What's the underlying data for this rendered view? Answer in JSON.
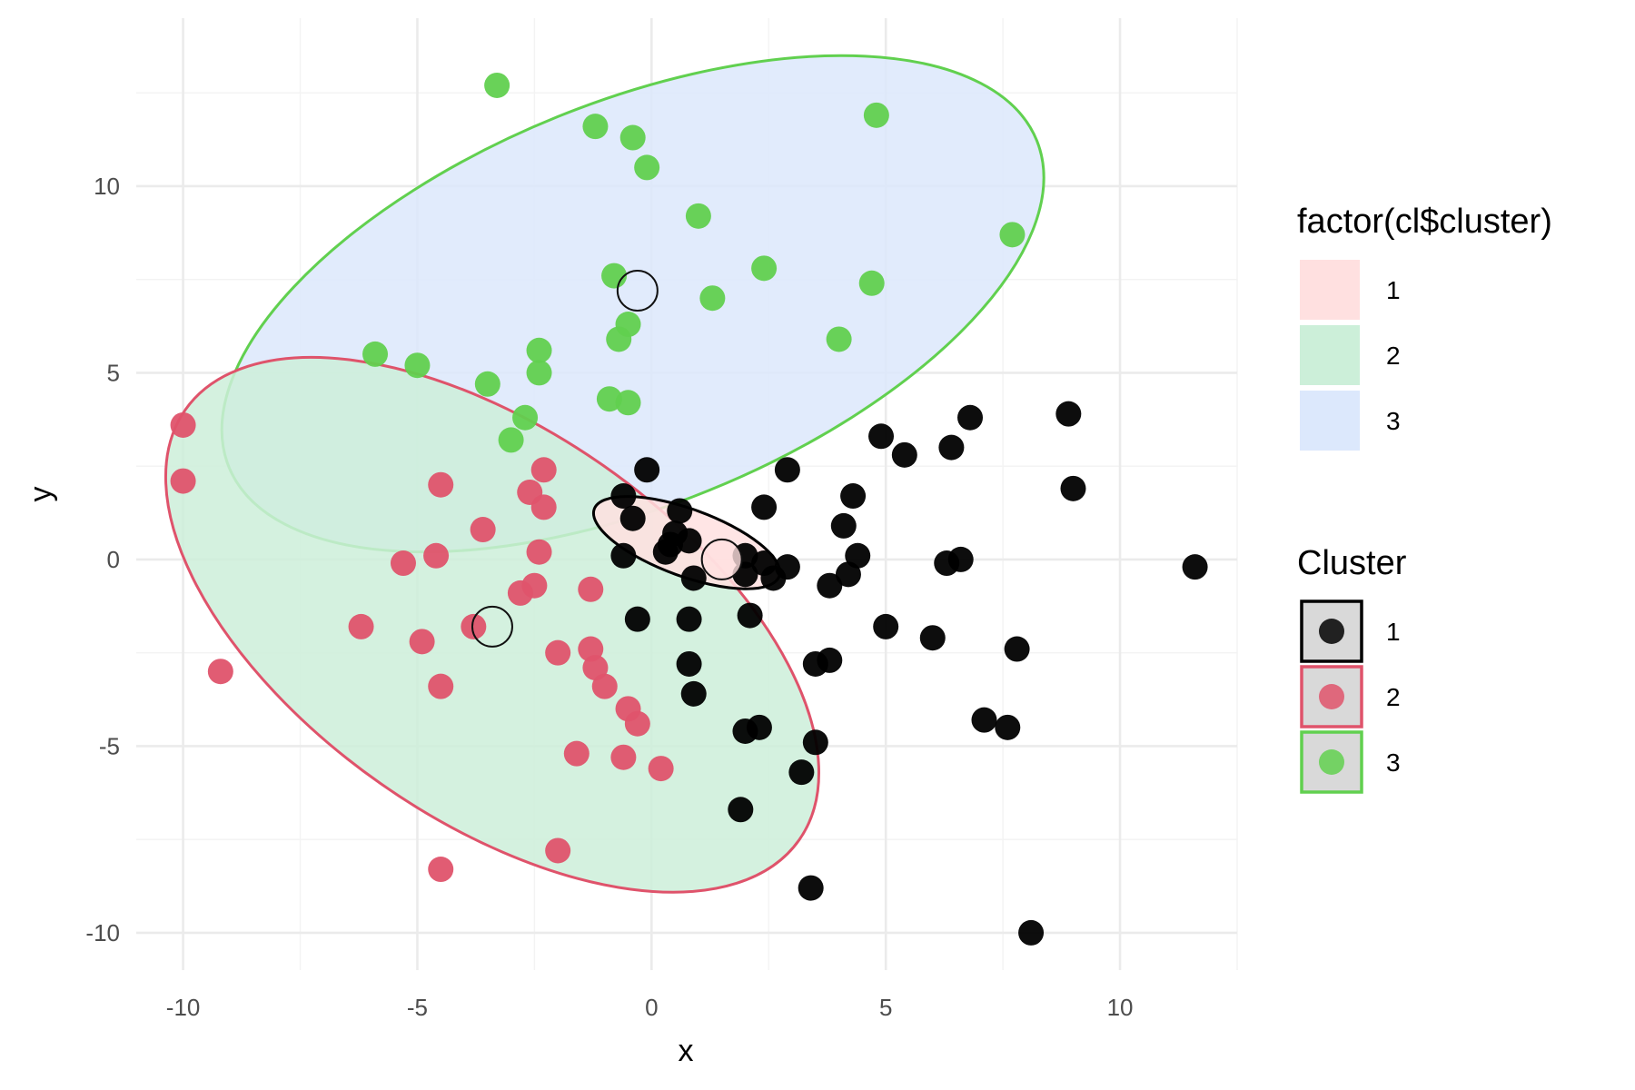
{
  "chart_data": {
    "type": "scatter",
    "xlabel": "x",
    "ylabel": "y",
    "xlim": [
      -11,
      12.5
    ],
    "ylim": [
      -11,
      14.5
    ],
    "x_ticks": [
      -10,
      -5,
      0,
      5,
      10
    ],
    "y_ticks": [
      -10,
      -5,
      0,
      5,
      10
    ],
    "x_tick_labels": [
      "-10",
      "-5",
      "0",
      "5",
      "10"
    ],
    "y_tick_labels": [
      "-10",
      "-5",
      "0",
      "5",
      "10"
    ],
    "grid": true,
    "legend_placement": "right",
    "legends": [
      {
        "title": "factor(cl$cluster)",
        "kind": "fill",
        "entries": [
          {
            "label": "1",
            "color": "#ffe0e0"
          },
          {
            "label": "2",
            "color": "#ccefd9"
          },
          {
            "label": "3",
            "color": "#dce8fc"
          }
        ]
      },
      {
        "title": "Cluster",
        "kind": "color",
        "entries": [
          {
            "label": "1",
            "color": "#000000"
          },
          {
            "label": "2",
            "color": "#df536b"
          },
          {
            "label": "3",
            "color": "#61d04f"
          }
        ]
      }
    ],
    "series": [
      {
        "cluster": "1",
        "color": "#000000",
        "points": [
          [
            11.6,
            -0.2
          ],
          [
            9.0,
            1.9
          ],
          [
            8.9,
            3.9
          ],
          [
            8.1,
            -10.0
          ],
          [
            7.8,
            -2.4
          ],
          [
            7.6,
            -4.5
          ],
          [
            7.1,
            -4.3
          ],
          [
            6.8,
            3.8
          ],
          [
            6.4,
            3.0
          ],
          [
            6.6,
            0.0
          ],
          [
            6.3,
            -0.1
          ],
          [
            6.0,
            -2.1
          ],
          [
            5.4,
            2.8
          ],
          [
            4.9,
            3.3
          ],
          [
            5.0,
            -1.8
          ],
          [
            4.3,
            1.7
          ],
          [
            4.4,
            0.1
          ],
          [
            4.1,
            0.9
          ],
          [
            4.2,
            -0.4
          ],
          [
            3.8,
            -0.7
          ],
          [
            3.8,
            -2.7
          ],
          [
            3.5,
            -2.8
          ],
          [
            3.5,
            -4.9
          ],
          [
            3.2,
            -5.7
          ],
          [
            3.4,
            -8.8
          ],
          [
            2.9,
            2.4
          ],
          [
            2.4,
            1.4
          ],
          [
            2.9,
            -0.2
          ],
          [
            2.6,
            -0.5
          ],
          [
            2.4,
            -0.1
          ],
          [
            2.1,
            -1.5
          ],
          [
            2.0,
            -0.4
          ],
          [
            2.0,
            0.1
          ],
          [
            2.3,
            -4.5
          ],
          [
            2.0,
            -4.6
          ],
          [
            1.9,
            -6.7
          ],
          [
            0.9,
            -0.5
          ],
          [
            0.8,
            -1.6
          ],
          [
            0.8,
            -2.8
          ],
          [
            0.9,
            -3.6
          ],
          [
            -0.3,
            -1.6
          ],
          [
            -0.6,
            0.1
          ],
          [
            -0.6,
            1.7
          ],
          [
            -0.1,
            2.4
          ],
          [
            -0.4,
            1.1
          ],
          [
            0.6,
            1.3
          ],
          [
            0.5,
            0.7
          ],
          [
            0.4,
            0.4
          ],
          [
            0.8,
            0.5
          ],
          [
            0.3,
            0.2
          ]
        ]
      },
      {
        "cluster": "2",
        "color": "#df536b",
        "points": [
          [
            -10.0,
            3.6
          ],
          [
            -10.0,
            2.1
          ],
          [
            -9.2,
            -3.0
          ],
          [
            -4.5,
            -8.3
          ],
          [
            -2.0,
            -7.8
          ],
          [
            -6.2,
            -1.8
          ],
          [
            -5.3,
            -0.1
          ],
          [
            -4.6,
            0.1
          ],
          [
            -4.9,
            -2.2
          ],
          [
            -4.5,
            -3.4
          ],
          [
            -3.8,
            -1.8
          ],
          [
            -2.8,
            -0.9
          ],
          [
            -2.5,
            -0.7
          ],
          [
            -2.0,
            -2.5
          ],
          [
            -1.3,
            -0.8
          ],
          [
            -1.3,
            -2.4
          ],
          [
            -1.2,
            -2.9
          ],
          [
            -1.0,
            -3.4
          ],
          [
            -0.5,
            -4.0
          ],
          [
            -0.3,
            -4.4
          ],
          [
            -1.6,
            -5.2
          ],
          [
            -0.6,
            -5.3
          ],
          [
            0.2,
            -5.6
          ],
          [
            -2.4,
            0.2
          ],
          [
            -4.5,
            2.0
          ],
          [
            -3.6,
            0.8
          ],
          [
            -2.6,
            1.8
          ],
          [
            -2.3,
            1.4
          ],
          [
            -2.3,
            2.4
          ]
        ]
      },
      {
        "cluster": "3",
        "color": "#61d04f",
        "points": [
          [
            -3.3,
            12.7
          ],
          [
            7.7,
            8.7
          ],
          [
            -1.2,
            11.6
          ],
          [
            -0.4,
            11.3
          ],
          [
            -0.1,
            10.5
          ],
          [
            4.8,
            11.9
          ],
          [
            1.0,
            9.2
          ],
          [
            2.4,
            7.8
          ],
          [
            4.7,
            7.4
          ],
          [
            1.3,
            7.0
          ],
          [
            4.0,
            5.9
          ],
          [
            -0.8,
            7.6
          ],
          [
            -0.5,
            6.3
          ],
          [
            -0.7,
            5.9
          ],
          [
            -2.4,
            5.6
          ],
          [
            -2.4,
            5.0
          ],
          [
            -5.9,
            5.5
          ],
          [
            -5.0,
            5.2
          ],
          [
            -3.5,
            4.7
          ],
          [
            -0.9,
            4.3
          ],
          [
            -0.5,
            4.2
          ],
          [
            -2.7,
            3.8
          ],
          [
            -3.0,
            3.2
          ]
        ]
      }
    ],
    "centers": [
      {
        "cluster": "1",
        "x": 1.5,
        "y": 0.0,
        "fill": "#ffe0e0"
      },
      {
        "cluster": "2",
        "x": -3.4,
        "y": -1.8,
        "fill": "none"
      },
      {
        "cluster": "3",
        "x": -0.3,
        "y": 7.2,
        "fill": "none"
      }
    ],
    "ellipses": [
      {
        "cluster": "3",
        "stroke": "#61d04f",
        "fill": "#dce8fc",
        "cx": -0.4,
        "cy": 6.85,
        "a": 9.3,
        "b": 5.4,
        "angle_deg": 22
      },
      {
        "cluster": "2",
        "stroke": "#df536b",
        "fill": "#ccefd9",
        "cx": -3.4,
        "cy": -1.75,
        "a": 8.0,
        "b": 5.2,
        "angle_deg": -35
      },
      {
        "cluster": "1",
        "stroke": "#000000",
        "fill": "#ffe0e0",
        "cx": 0.75,
        "cy": 0.45,
        "a": 2.1,
        "b": 0.9,
        "angle_deg": -20
      }
    ]
  }
}
